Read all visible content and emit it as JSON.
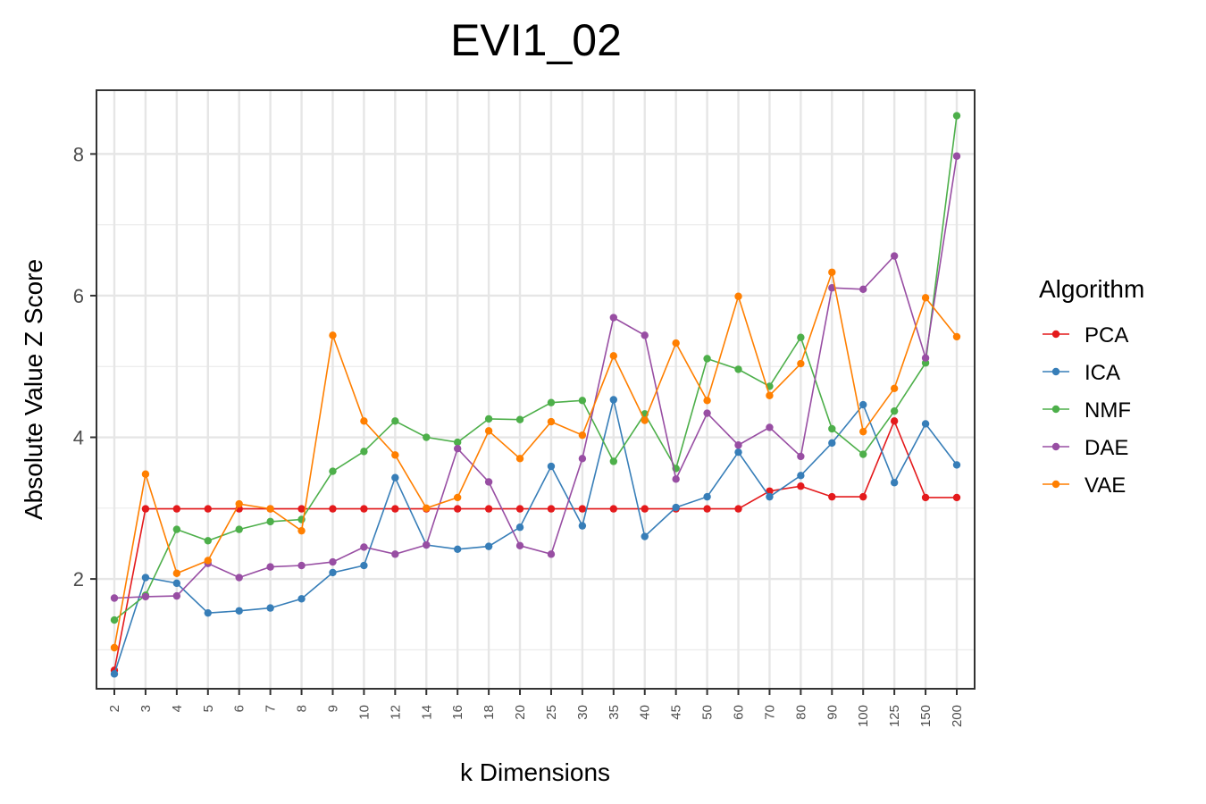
{
  "chart_data": {
    "type": "line",
    "title": "EVI1_02",
    "xlabel": "k Dimensions",
    "ylabel": "Absolute Value Z Score",
    "categories": [
      "2",
      "3",
      "4",
      "5",
      "6",
      "7",
      "8",
      "9",
      "10",
      "12",
      "14",
      "16",
      "18",
      "20",
      "25",
      "30",
      "35",
      "40",
      "45",
      "50",
      "60",
      "70",
      "80",
      "90",
      "100",
      "125",
      "150",
      "200"
    ],
    "ylim": [
      0.45,
      8.9
    ],
    "yticks": [
      2,
      4,
      6,
      8
    ],
    "grid": true,
    "legend": {
      "title": "Algorithm",
      "placement": "right"
    },
    "series": [
      {
        "name": "PCA",
        "color": "#e41a1c",
        "values": [
          0.71,
          2.99,
          2.99,
          2.99,
          2.99,
          2.99,
          2.99,
          2.99,
          2.99,
          2.99,
          2.99,
          2.99,
          2.99,
          2.99,
          2.99,
          2.99,
          2.99,
          2.99,
          2.99,
          2.99,
          2.99,
          3.24,
          3.31,
          3.16,
          3.16,
          4.23,
          3.15,
          3.15
        ]
      },
      {
        "name": "ICA",
        "color": "#377eb8",
        "values": [
          0.66,
          2.02,
          1.94,
          1.52,
          1.55,
          1.59,
          1.72,
          2.09,
          2.19,
          3.43,
          2.48,
          2.42,
          2.46,
          2.73,
          3.59,
          2.75,
          4.53,
          2.6,
          3.01,
          3.16,
          3.79,
          3.16,
          3.46,
          3.92,
          4.46,
          3.36,
          4.19,
          3.61
        ]
      },
      {
        "name": "NMF",
        "color": "#4daf4a",
        "values": [
          1.42,
          1.77,
          2.7,
          2.54,
          2.7,
          2.81,
          2.84,
          3.52,
          3.8,
          4.23,
          4.0,
          3.93,
          4.26,
          4.25,
          4.49,
          4.52,
          3.66,
          4.33,
          3.56,
          5.11,
          4.96,
          4.72,
          5.41,
          4.12,
          3.76,
          4.37,
          5.05,
          8.54
        ]
      },
      {
        "name": "DAE",
        "color": "#984ea3",
        "values": [
          1.73,
          1.75,
          1.76,
          2.22,
          2.02,
          2.17,
          2.19,
          2.24,
          2.45,
          2.35,
          2.48,
          3.84,
          3.37,
          2.47,
          2.35,
          3.7,
          5.69,
          5.44,
          3.41,
          4.34,
          3.89,
          4.14,
          3.73,
          6.11,
          6.09,
          6.56,
          5.12,
          7.97
        ]
      },
      {
        "name": "VAE",
        "color": "#ff7f00",
        "values": [
          1.03,
          3.48,
          2.08,
          2.26,
          3.06,
          2.99,
          2.68,
          5.44,
          4.23,
          3.75,
          3.0,
          3.15,
          4.09,
          3.7,
          4.22,
          4.03,
          5.15,
          4.24,
          5.33,
          4.52,
          5.99,
          4.59,
          5.04,
          6.33,
          4.08,
          4.69,
          5.97,
          5.42
        ]
      }
    ]
  }
}
